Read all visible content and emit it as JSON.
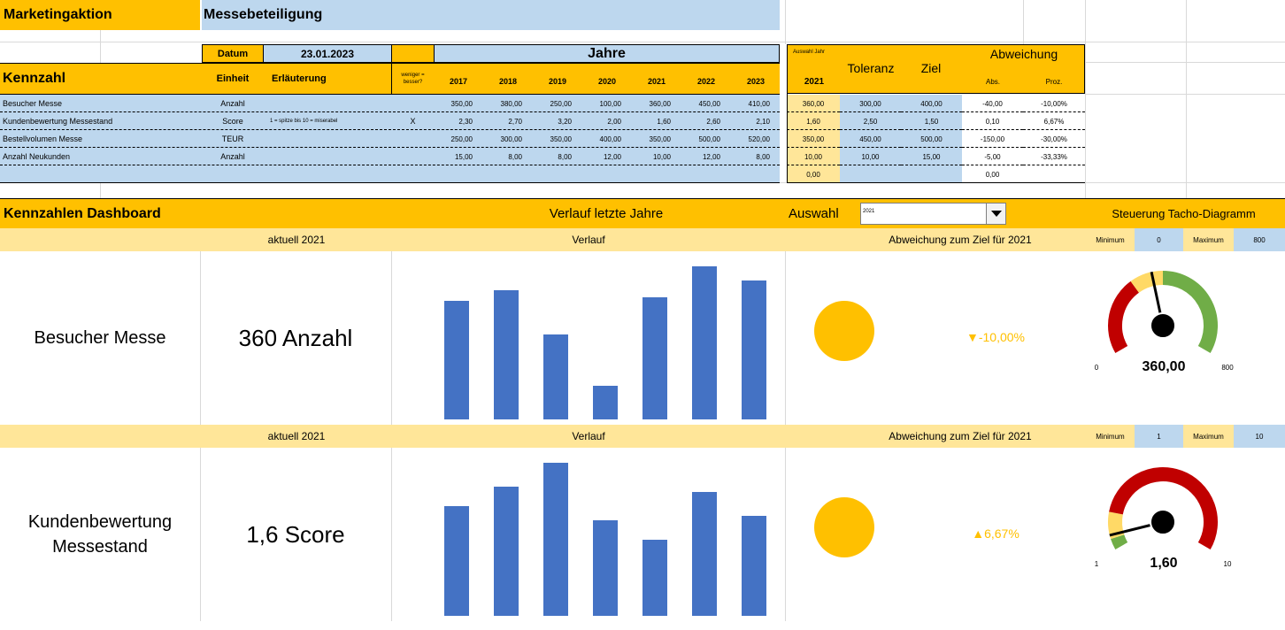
{
  "header": {
    "title": "Marketingaktion",
    "subtitle": "Messebeteiligung",
    "datum_label": "Datum",
    "datum_value": "23.01.2023",
    "jahre_label": "Jahre"
  },
  "table": {
    "col_kennzahl": "Kennzahl",
    "col_einheit": "Einheit",
    "col_erlaeuterung": "Erläuterung",
    "col_weniger": "weniger = besser?",
    "years": [
      "2017",
      "2018",
      "2019",
      "2020",
      "2021",
      "2022",
      "2023"
    ],
    "auswahl_small": "Auswahl Jahr",
    "auswahl_year": "2021",
    "col_toleranz": "Toleranz",
    "col_ziel": "Ziel",
    "col_abweichung": "Abweichung",
    "col_abs": "Abs.",
    "col_proz": "Proz.",
    "rows": [
      {
        "name": "Besucher Messe",
        "unit": "Anzahl",
        "note": "",
        "weniger": "",
        "values": [
          "350,00",
          "380,00",
          "250,00",
          "100,00",
          "360,00",
          "450,00",
          "410,00"
        ],
        "sel": "360,00",
        "tol": "300,00",
        "ziel": "400,00",
        "abs": "-40,00",
        "proz": "-10,00%"
      },
      {
        "name": "Kundenbewertung Messestand",
        "unit": "Score",
        "note": "1 = spitze bis 10 = miserabel",
        "weniger": "X",
        "values": [
          "2,30",
          "2,70",
          "3,20",
          "2,00",
          "1,60",
          "2,60",
          "2,10"
        ],
        "sel": "1,60",
        "tol": "2,50",
        "ziel": "1,50",
        "abs": "0,10",
        "proz": "6,67%"
      },
      {
        "name": "Bestellvolumen Messe",
        "unit": "TEUR",
        "note": "",
        "weniger": "",
        "values": [
          "250,00",
          "300,00",
          "350,00",
          "400,00",
          "350,00",
          "500,00",
          "520,00"
        ],
        "sel": "350,00",
        "tol": "450,00",
        "ziel": "500,00",
        "abs": "-150,00",
        "proz": "-30,00%"
      },
      {
        "name": "Anzahl Neukunden",
        "unit": "Anzahl",
        "note": "",
        "weniger": "",
        "values": [
          "15,00",
          "8,00",
          "8,00",
          "12,00",
          "10,00",
          "12,00",
          "8,00"
        ],
        "sel": "10,00",
        "tol": "10,00",
        "ziel": "15,00",
        "abs": "-5,00",
        "proz": "-33,33%"
      },
      {
        "name": "",
        "unit": "",
        "note": "",
        "weniger": "",
        "values": [
          "",
          "",
          "",
          "",
          "",
          "",
          ""
        ],
        "sel": "0,00",
        "tol": "",
        "ziel": "",
        "abs": "0,00",
        "proz": ""
      }
    ]
  },
  "dashboard": {
    "title": "Kennzahlen Dashboard",
    "verlauf_title": "Verlauf letzte Jahre",
    "auswahl_label": "Auswahl",
    "auswahl_value": "2021",
    "steuerung": "Steuerung Tacho-Diagramm",
    "panels": [
      {
        "aktuell": "aktuell 2021",
        "verlauf": "Verlauf",
        "abw_label": "Abweichung zum Ziel für 2021",
        "min_label": "Minimum",
        "min_value": "0",
        "max_label": "Maximum",
        "max_value": "800",
        "name": "Besucher Messe",
        "current": "360 Anzahl",
        "deviation": "▼-10,00%",
        "gauge_value": "360,00",
        "gauge_min": "0",
        "gauge_max": "800",
        "gauge_fraction": 0.45,
        "bars": [
          350,
          380,
          250,
          100,
          360,
          450,
          410
        ]
      },
      {
        "aktuell": "aktuell 2021",
        "verlauf": "Verlauf",
        "abw_label": "Abweichung zum Ziel für 2021",
        "min_label": "Minimum",
        "min_value": "1",
        "max_label": "Maximum",
        "max_value": "10",
        "name": "Kundenbewertung Messestand",
        "current": "1,6 Score",
        "deviation": "▲6,67%",
        "gauge_value": "1,60",
        "gauge_min": "1",
        "gauge_max": "10",
        "gauge_fraction": 0.067,
        "bars": [
          2.3,
          2.7,
          3.2,
          2.0,
          1.6,
          2.6,
          2.1
        ]
      }
    ],
    "colors": {
      "orange": "#ffc000",
      "blue": "#bdd7ee",
      "cream": "#ffe699",
      "bar": "#4472c4",
      "red": "#c00000",
      "yellow": "#ffd966",
      "green": "#70ad47",
      "dev": "#ffc000"
    }
  }
}
